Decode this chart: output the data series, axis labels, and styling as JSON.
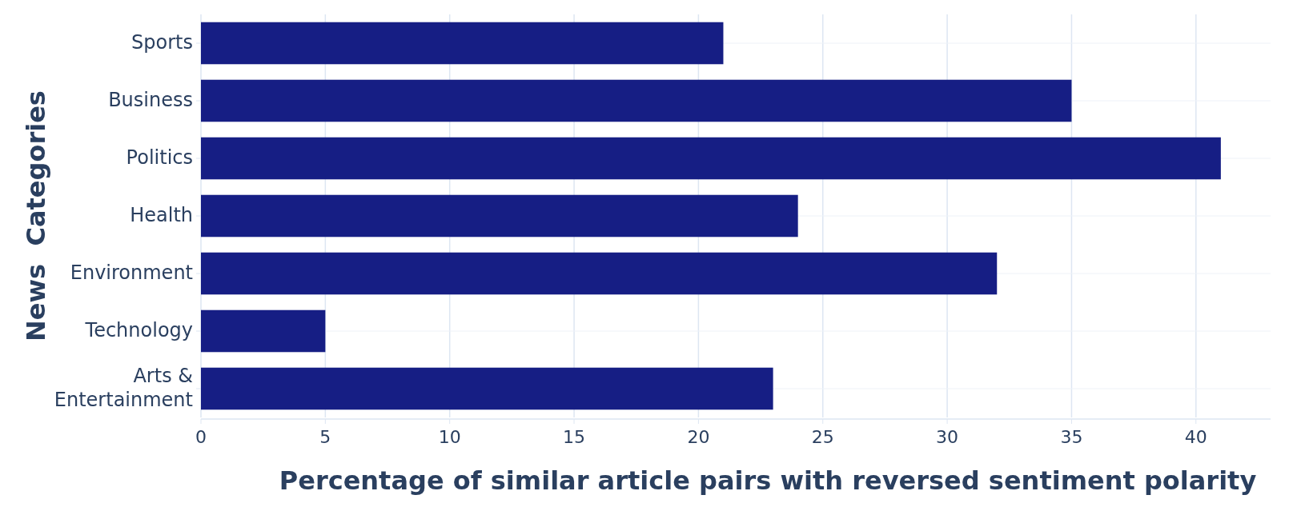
{
  "chart_data": {
    "type": "bar",
    "orientation": "horizontal",
    "xlabel": "Percentage of similar article pairs with reversed sentiment polarity",
    "ylabel": "News  Categories",
    "categories": [
      "Sports",
      "Business",
      "Politics",
      "Health",
      "Environment",
      "Technology",
      "Arts & Entertainment"
    ],
    "values": [
      21,
      35,
      41,
      24,
      32,
      5,
      23
    ],
    "color": "#161e84",
    "xlim": [
      0,
      43
    ],
    "xticks": [
      0,
      5,
      10,
      15,
      20,
      25,
      30,
      35,
      40
    ],
    "grid": true
  }
}
